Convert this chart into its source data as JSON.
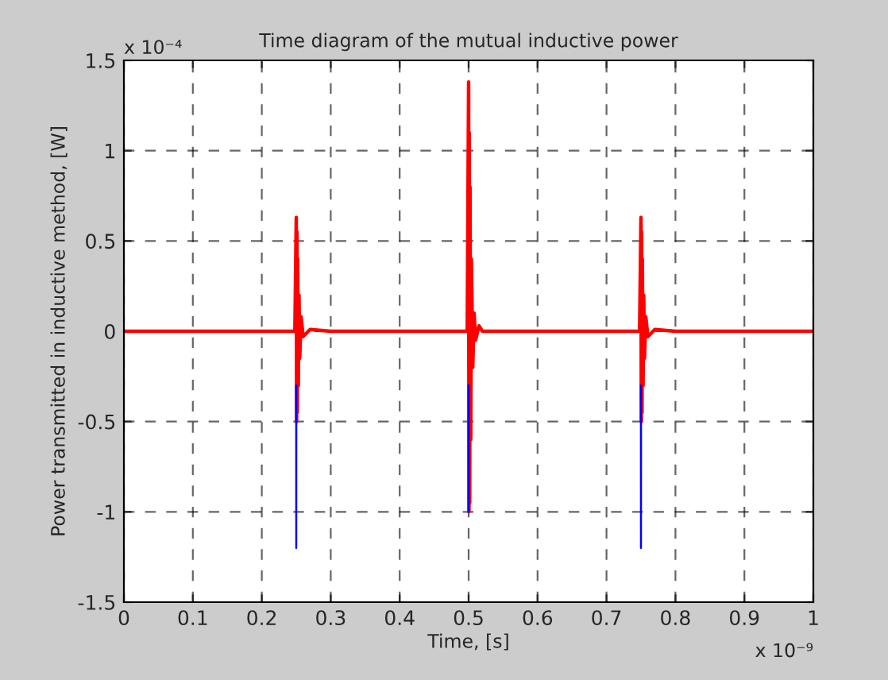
{
  "chart_data": {
    "type": "line",
    "title": "Time diagram of the mutual inductive power",
    "xlabel": "Time, [s]",
    "ylabel": "Power transmitted in inductive method, [W]",
    "annotations": [
      "x 10⁻⁴",
      "x 10⁻⁹"
    ],
    "xlim": [
      0,
      1
    ],
    "ylim": [
      -1.5,
      1.5
    ],
    "xticks": [
      0,
      0.1,
      0.2,
      0.3,
      0.4,
      0.5,
      0.6,
      0.7,
      0.8,
      0.9,
      1
    ],
    "yticks": [
      -1.5,
      -1,
      -0.5,
      0,
      0.5,
      1,
      1.5
    ],
    "grid": true,
    "line_style": "solid",
    "marker": "none",
    "series": [
      {
        "color": "#0000ff",
        "x": [
          0.2499,
          0.25,
          0.2501,
          0.3,
          0.4999,
          0.5,
          0.5001,
          0.6,
          0.7499,
          0.75,
          0.7501
        ],
        "values": [
          -0.3,
          -1.2,
          -0.3,
          null,
          -0.3,
          -1.0,
          -0.3,
          null,
          -0.3,
          -1.2,
          -0.3
        ]
      },
      {
        "color": "#ff0000",
        "x": [
          0,
          0.1,
          0.2,
          0.248,
          0.25,
          0.2505,
          0.251,
          0.2515,
          0.252,
          0.253,
          0.254,
          0.255,
          0.257,
          0.26,
          0.27,
          0.3,
          0.4,
          0.498,
          0.5,
          0.5005,
          0.501,
          0.5015,
          0.502,
          0.503,
          0.504,
          0.505,
          0.506,
          0.508,
          0.51,
          0.515,
          0.52,
          0.6,
          0.7,
          0.748,
          0.75,
          0.7505,
          0.751,
          0.7515,
          0.752,
          0.753,
          0.754,
          0.755,
          0.757,
          0.76,
          0.77,
          0.8,
          0.9,
          1
        ],
        "values": [
          0,
          0,
          0,
          0,
          0.63,
          -0.5,
          0.55,
          -0.45,
          0.4,
          -0.3,
          0.2,
          -0.15,
          0.08,
          -0.03,
          0.01,
          0,
          0,
          0,
          1.38,
          -1.0,
          1.1,
          -0.95,
          0.8,
          -0.6,
          0.4,
          0.13,
          -0.2,
          0.1,
          -0.05,
          0.03,
          0,
          0,
          0,
          0,
          0.63,
          -0.5,
          0.55,
          -0.45,
          0.4,
          -0.3,
          0.2,
          -0.15,
          0.08,
          -0.03,
          0.01,
          0,
          0,
          0
        ]
      }
    ]
  }
}
